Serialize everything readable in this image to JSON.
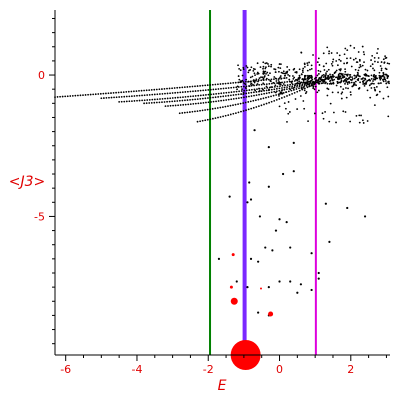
{
  "chart_data": {
    "type": "scatter",
    "xlabel": "E",
    "ylabel": "<J3>",
    "xlim": [
      -6.3,
      3.1
    ],
    "ylim": [
      -9.9,
      2.3
    ],
    "x_ticks": [
      "-6",
      "-4",
      "-2",
      "0",
      "2"
    ],
    "x_tick_values": [
      -6,
      -4,
      -2,
      0,
      2
    ],
    "y_ticks": [
      "0",
      "-5"
    ],
    "y_tick_values": [
      0,
      -5
    ],
    "colors": {
      "points": "#000000",
      "highlight": "#ff0000",
      "labels": "#e00000",
      "green_line": "#008000",
      "blue_line": "#7b28ff",
      "magenta_line": "#dd00dd"
    },
    "vertical_lines": [
      {
        "x": -1.95,
        "color": "#008000",
        "weight": "thin"
      },
      {
        "x": -0.98,
        "color": "#7b28ff",
        "weight": "thick"
      },
      {
        "x": 1.02,
        "color": "#dd00dd",
        "weight": "thin"
      }
    ],
    "main_cloud_description": "dense curved branches of black points from x=-6.3 to 3.1, y between -2 and 1",
    "scattered_points": [
      [
        -0.3,
        -2.55
      ],
      [
        -0.7,
        -1.95
      ],
      [
        0.4,
        -2.4
      ],
      [
        0.1,
        -3.5
      ],
      [
        0.4,
        -3.4
      ],
      [
        -0.3,
        -3.95
      ],
      [
        -0.85,
        -3.8
      ],
      [
        -1.4,
        -4.3
      ],
      [
        -0.9,
        -4.5
      ],
      [
        -0.55,
        -5.0
      ],
      [
        -0.8,
        -4.4
      ],
      [
        0.0,
        -5.1
      ],
      [
        -0.1,
        -5.5
      ],
      [
        0.2,
        -5.2
      ],
      [
        1.3,
        -4.55
      ],
      [
        1.9,
        -4.7
      ],
      [
        2.4,
        -5.0
      ],
      [
        1.4,
        -5.9
      ],
      [
        0.9,
        -6.3
      ],
      [
        0.3,
        -6.1
      ],
      [
        -0.2,
        -6.2
      ],
      [
        -0.4,
        -6.1
      ],
      [
        -0.6,
        -6.6
      ],
      [
        -0.8,
        -6.5
      ],
      [
        -1.7,
        -6.5
      ],
      [
        -1.2,
        -7.3
      ],
      [
        -0.9,
        -7.5
      ],
      [
        -0.3,
        -7.5
      ],
      [
        0.0,
        -7.3
      ],
      [
        0.3,
        -7.3
      ],
      [
        0.5,
        -7.7
      ],
      [
        0.6,
        -7.4
      ],
      [
        1.1,
        -7.0
      ],
      [
        1.1,
        -7.2
      ],
      [
        0.9,
        -7.6
      ],
      [
        -0.6,
        -8.4
      ],
      [
        -0.3,
        -8.5
      ]
    ],
    "red_points": [
      {
        "x": -1.3,
        "y": -6.35,
        "r": 1.5
      },
      {
        "x": -1.35,
        "y": -7.5,
        "r": 1.5
      },
      {
        "x": -1.27,
        "y": -8.0,
        "r": 3.5
      },
      {
        "x": -0.52,
        "y": -7.55,
        "r": 1.0
      },
      {
        "x": -0.25,
        "y": -8.45,
        "r": 2.5
      },
      {
        "x": -0.95,
        "y": -9.9,
        "r": 15
      }
    ]
  }
}
